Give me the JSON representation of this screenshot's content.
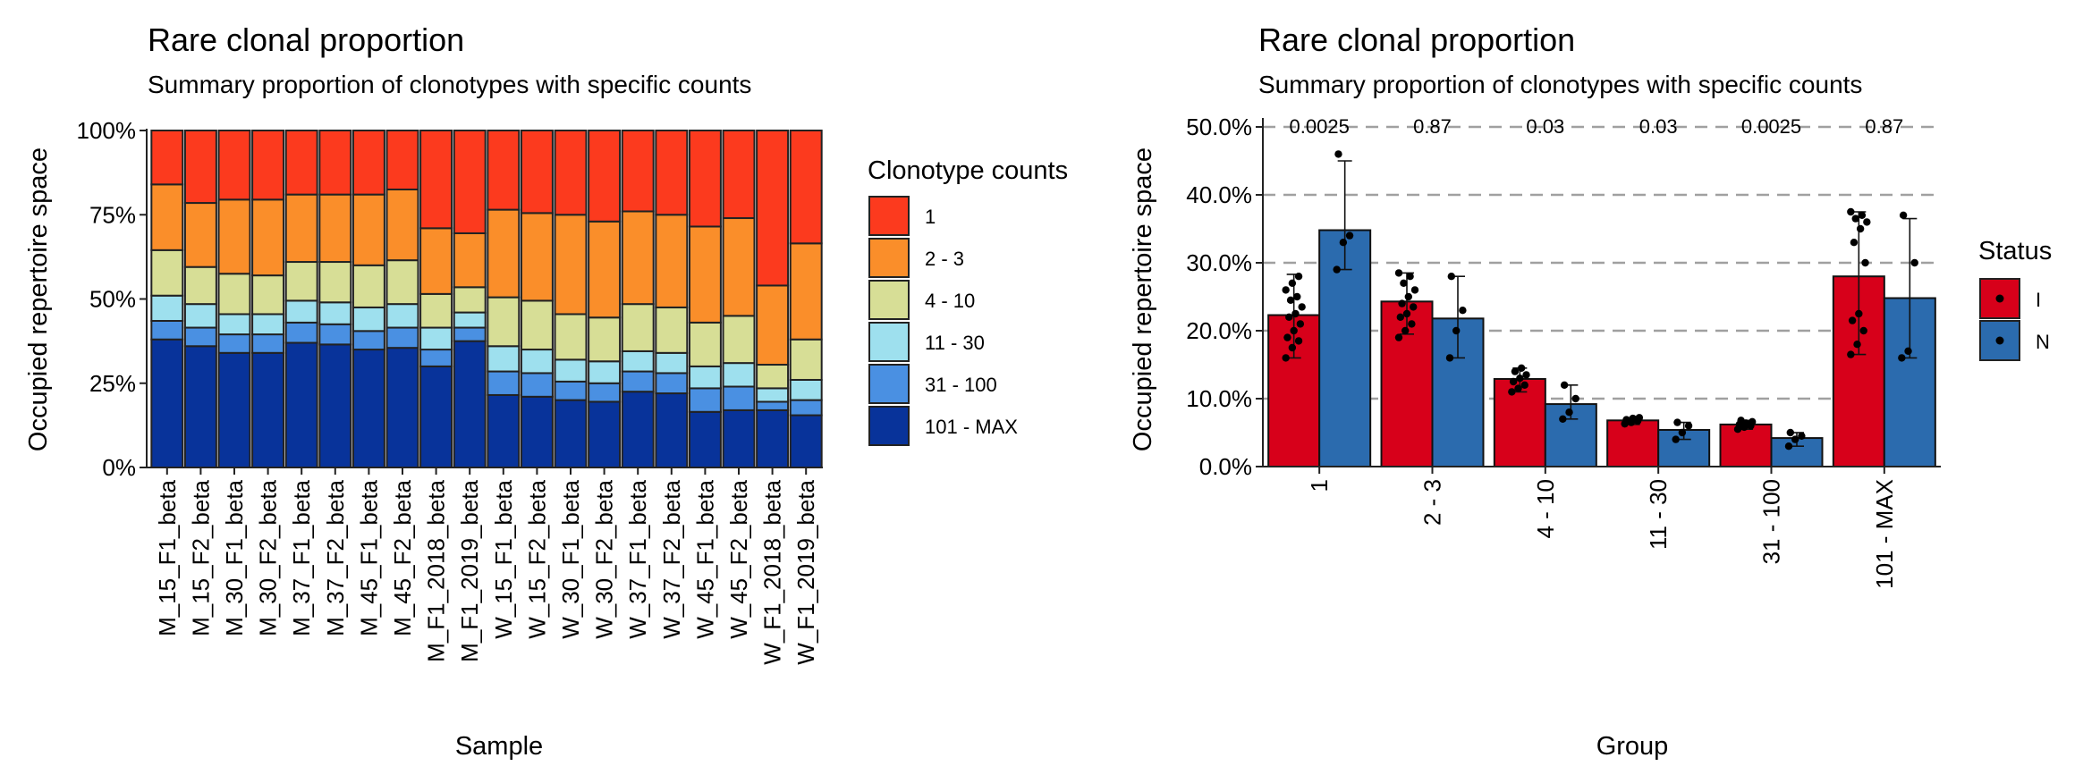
{
  "charts": [
    {
      "title": "Rare clonal proportion",
      "subtitle": "Summary proportion of clonotypes with specific counts"
    },
    {
      "title": "Rare clonal proportion",
      "subtitle": "Summary proportion of clonotypes with specific counts"
    }
  ],
  "chart_data": [
    {
      "type": "bar",
      "stacked": true,
      "title": "Rare clonal proportion",
      "subtitle": "Summary proportion of clonotypes with specific counts",
      "xlabel": "Sample",
      "ylabel": "Occupied repertoire space",
      "ylim": [
        0,
        1
      ],
      "yticks": [
        "0%",
        "25%",
        "50%",
        "75%",
        "100%"
      ],
      "legend_title": "Clonotype counts",
      "legend_position": "right",
      "categories": [
        "M_15_F1_beta",
        "M_15_F2_beta",
        "M_30_F1_beta",
        "M_30_F2_beta",
        "M_37_F1_beta",
        "M_37_F2_beta",
        "M_45_F1_beta",
        "M_45_F2_beta",
        "M_F1_2018_beta",
        "M_F1_2019_beta",
        "W_15_F1_beta",
        "W_15_F2_beta",
        "W_30_F1_beta",
        "W_30_F2_beta",
        "W_37_F1_beta",
        "W_37_F2_beta",
        "W_45_F1_beta",
        "W_45_F2_beta",
        "W_F1_2018_beta",
        "W_F1_2019_beta"
      ],
      "series": [
        {
          "name": "101 - MAX",
          "color": "#08339A",
          "values": [
            0.38,
            0.36,
            0.34,
            0.34,
            0.37,
            0.365,
            0.35,
            0.355,
            0.3,
            0.375,
            0.215,
            0.21,
            0.2,
            0.195,
            0.225,
            0.22,
            0.165,
            0.17,
            0.17,
            0.155
          ]
        },
        {
          "name": "31 - 100",
          "color": "#4A90E2",
          "values": [
            0.055,
            0.055,
            0.055,
            0.055,
            0.06,
            0.06,
            0.055,
            0.06,
            0.05,
            0.04,
            0.07,
            0.07,
            0.055,
            0.055,
            0.06,
            0.06,
            0.07,
            0.07,
            0.025,
            0.045
          ]
        },
        {
          "name": "11 - 30",
          "color": "#9EE0EE",
          "values": [
            0.075,
            0.07,
            0.06,
            0.06,
            0.065,
            0.065,
            0.07,
            0.07,
            0.065,
            0.045,
            0.075,
            0.07,
            0.065,
            0.065,
            0.06,
            0.06,
            0.065,
            0.07,
            0.04,
            0.06
          ]
        },
        {
          "name": "4 - 10",
          "color": "#D7DE96",
          "values": [
            0.135,
            0.11,
            0.12,
            0.115,
            0.115,
            0.12,
            0.125,
            0.13,
            0.1,
            0.075,
            0.145,
            0.145,
            0.135,
            0.13,
            0.14,
            0.135,
            0.13,
            0.14,
            0.07,
            0.12
          ]
        },
        {
          "name": "2 - 3",
          "color": "#FA8E2A",
          "values": [
            0.195,
            0.19,
            0.22,
            0.225,
            0.2,
            0.2,
            0.21,
            0.21,
            0.195,
            0.16,
            0.26,
            0.26,
            0.295,
            0.285,
            0.275,
            0.275,
            0.285,
            0.29,
            0.235,
            0.285
          ]
        },
        {
          "name": "1",
          "color": "#FC3A1E",
          "values": [
            0.16,
            0.215,
            0.205,
            0.205,
            0.19,
            0.19,
            0.19,
            0.175,
            0.29,
            0.305,
            0.235,
            0.245,
            0.25,
            0.27,
            0.24,
            0.25,
            0.285,
            0.26,
            0.46,
            0.335
          ]
        }
      ]
    },
    {
      "type": "bar",
      "title": "Rare clonal proportion",
      "subtitle": "Summary proportion of clonotypes with specific counts",
      "xlabel": "Group",
      "ylabel": "Occupied repertoire space",
      "ylim": [
        0,
        0.5
      ],
      "yticks": [
        "0.0%",
        "10.0%",
        "20.0%",
        "30.0%",
        "40.0%",
        "50.0%"
      ],
      "grid": "horizontal dashed",
      "legend_title": "Status",
      "legend_position": "right",
      "categories": [
        "1",
        "2 - 3",
        "4 - 10",
        "11 - 30",
        "31 - 100",
        "101 - MAX"
      ],
      "pvalues": [
        "0.0025",
        "0.87",
        "0.03",
        "0.03",
        "0.0025",
        "0.87"
      ],
      "series": [
        {
          "name": "I",
          "color": "#D7001A",
          "values": [
            0.223,
            0.243,
            0.129,
            0.068,
            0.062,
            0.28
          ],
          "error_low": [
            0.16,
            0.195,
            0.11,
            0.062,
            0.055,
            0.165
          ],
          "error_high": [
            0.283,
            0.285,
            0.145,
            0.072,
            0.068,
            0.375
          ],
          "points": [
            [
              0.16,
              0.175,
              0.185,
              0.19,
              0.2,
              0.21,
              0.22,
              0.225,
              0.235,
              0.245,
              0.25,
              0.26,
              0.27,
              0.28
            ],
            [
              0.19,
              0.2,
              0.21,
              0.22,
              0.225,
              0.235,
              0.24,
              0.25,
              0.26,
              0.27,
              0.28,
              0.285
            ],
            [
              0.11,
              0.115,
              0.12,
              0.125,
              0.13,
              0.135,
              0.14,
              0.145
            ],
            [
              0.063,
              0.065,
              0.067,
              0.069,
              0.071,
              0.072
            ],
            [
              0.055,
              0.058,
              0.06,
              0.062,
              0.064,
              0.066,
              0.068
            ],
            [
              0.165,
              0.18,
              0.2,
              0.215,
              0.225,
              0.3,
              0.33,
              0.35,
              0.36,
              0.365,
              0.37,
              0.375
            ]
          ]
        },
        {
          "name": "N",
          "color": "#2B6BAE",
          "values": [
            0.348,
            0.218,
            0.092,
            0.054,
            0.042,
            0.248
          ],
          "error_low": [
            0.29,
            0.16,
            0.07,
            0.04,
            0.03,
            0.16
          ],
          "error_high": [
            0.45,
            0.28,
            0.12,
            0.065,
            0.05,
            0.365
          ],
          "points": [
            [
              0.29,
              0.33,
              0.34,
              0.46
            ],
            [
              0.16,
              0.2,
              0.23,
              0.28
            ],
            [
              0.07,
              0.08,
              0.1,
              0.12
            ],
            [
              0.04,
              0.05,
              0.06,
              0.065
            ],
            [
              0.03,
              0.04,
              0.045,
              0.05
            ],
            [
              0.16,
              0.17,
              0.3,
              0.37
            ]
          ]
        }
      ]
    }
  ]
}
